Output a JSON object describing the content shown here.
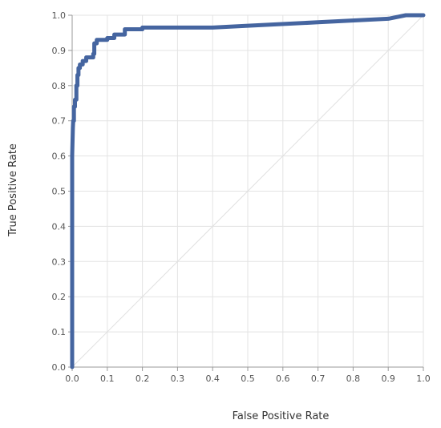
{
  "chart_data": {
    "type": "line",
    "title": "",
    "xlabel": "False Positive Rate",
    "ylabel": "True Positive Rate",
    "xlim": [
      0,
      1
    ],
    "ylim": [
      0,
      1
    ],
    "x_ticks": [
      "0.0",
      "0.1",
      "0.2",
      "0.3",
      "0.4",
      "0.5",
      "0.6",
      "0.7",
      "0.8",
      "0.9",
      "1.0"
    ],
    "y_ticks": [
      "0.0",
      "0.1",
      "0.2",
      "0.3",
      "0.4",
      "0.5",
      "0.6",
      "0.7",
      "0.8",
      "0.9",
      "1.0"
    ],
    "grid": true,
    "series": [
      {
        "color": "#4565a0",
        "x": [
          0.0,
          0.0,
          0.002,
          0.003,
          0.005,
          0.005,
          0.008,
          0.008,
          0.012,
          0.012,
          0.015,
          0.015,
          0.018,
          0.018,
          0.022,
          0.022,
          0.03,
          0.03,
          0.04,
          0.04,
          0.06,
          0.06,
          0.063,
          0.063,
          0.07,
          0.07,
          0.1,
          0.1,
          0.12,
          0.12,
          0.15,
          0.15,
          0.2,
          0.2,
          0.4,
          0.5,
          0.7,
          0.9,
          0.95,
          1.0
        ],
        "y": [
          0.0,
          0.6,
          0.68,
          0.7,
          0.7,
          0.74,
          0.74,
          0.76,
          0.76,
          0.8,
          0.8,
          0.83,
          0.83,
          0.85,
          0.85,
          0.86,
          0.86,
          0.87,
          0.87,
          0.88,
          0.88,
          0.89,
          0.89,
          0.92,
          0.92,
          0.93,
          0.93,
          0.935,
          0.935,
          0.945,
          0.945,
          0.96,
          0.96,
          0.965,
          0.965,
          0.97,
          0.98,
          0.99,
          1.0,
          1.0
        ]
      },
      {
        "color": "#e0e0e0",
        "x": [
          0.0,
          1.0
        ],
        "y": [
          0.0,
          1.0
        ]
      }
    ]
  }
}
